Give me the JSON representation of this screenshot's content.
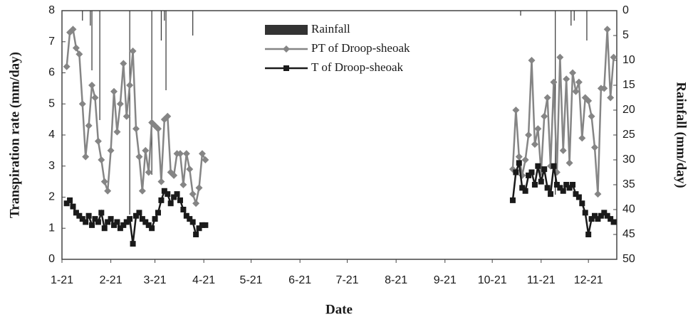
{
  "chart_data": {
    "type": "line",
    "xlabel": "Date",
    "ylabel": "Transpiration rate (mm/day)",
    "y2label": "Rainfall (mm/day)",
    "xlim": [
      1,
      353
    ],
    "xticks": [
      {
        "value": 1,
        "label": "1-21"
      },
      {
        "value": 32,
        "label": "2-21"
      },
      {
        "value": 60,
        "label": "3-21"
      },
      {
        "value": 91,
        "label": "4-21"
      },
      {
        "value": 121,
        "label": "5-21"
      },
      {
        "value": 152,
        "label": "6-21"
      },
      {
        "value": 182,
        "label": "7-21"
      },
      {
        "value": 213,
        "label": "8-21"
      },
      {
        "value": 244,
        "label": "9-21"
      },
      {
        "value": 274,
        "label": "10-21"
      },
      {
        "value": 305,
        "label": "11-21"
      },
      {
        "value": 335,
        "label": "12-21"
      }
    ],
    "ylim": [
      0,
      8
    ],
    "yticks": [
      0,
      1,
      2,
      3,
      4,
      5,
      6,
      7,
      8
    ],
    "y2lim": [
      50,
      0
    ],
    "y2ticks": [
      0,
      5,
      10,
      15,
      20,
      25,
      30,
      35,
      40,
      45,
      50
    ],
    "series": [
      {
        "name": "Rainfall",
        "type": "bar",
        "axis": "y2",
        "color": "#333333",
        "x": [
          14,
          19,
          20,
          25,
          44,
          58,
          64,
          66,
          67,
          84,
          292,
          314,
          324,
          326,
          334
        ],
        "values": [
          2,
          3,
          12,
          22,
          41,
          33,
          6,
          2,
          16,
          5,
          1,
          37,
          3,
          2,
          6
        ]
      },
      {
        "name": "PT of Droop-sheoak",
        "type": "line",
        "marker": "diamond",
        "color": "#858585",
        "x": [
          4,
          6,
          8,
          10,
          12,
          14,
          16,
          18,
          20,
          22,
          24,
          26,
          28,
          30,
          32,
          34,
          36,
          38,
          40,
          42,
          44,
          46,
          48,
          50,
          52,
          54,
          56,
          58,
          60,
          62,
          64,
          66,
          68,
          70,
          72,
          74,
          76,
          78,
          80,
          82,
          84,
          86,
          88,
          90,
          92,
          null,
          287,
          289,
          291,
          293,
          295,
          297,
          299,
          301,
          303,
          305,
          307,
          309,
          311,
          313,
          315,
          317,
          319,
          321,
          323,
          325,
          327,
          329,
          331,
          333,
          335,
          337,
          339,
          341,
          343,
          345,
          347,
          349,
          351
        ],
        "values": [
          6.2,
          7.3,
          7.4,
          6.8,
          6.6,
          5.0,
          3.3,
          4.3,
          5.6,
          5.2,
          3.8,
          3.2,
          2.5,
          2.2,
          3.5,
          5.4,
          4.1,
          5.0,
          6.3,
          4.6,
          5.6,
          6.7,
          4.2,
          3.3,
          2.2,
          3.5,
          2.8,
          4.4,
          4.3,
          4.2,
          2.5,
          4.5,
          4.6,
          2.8,
          2.7,
          3.4,
          3.4,
          2.4,
          3.4,
          2.9,
          2.1,
          1.8,
          2.3,
          3.4,
          3.2,
          null,
          2.9,
          4.8,
          3.3,
          2.7,
          3.2,
          4.0,
          6.4,
          3.7,
          4.2,
          2.8,
          4.6,
          5.2,
          3.0,
          5.7,
          2.8,
          6.5,
          3.5,
          5.8,
          3.1,
          6.0,
          5.4,
          5.7,
          3.9,
          5.2,
          5.1,
          4.6,
          3.6,
          2.1,
          5.5,
          5.5,
          7.4,
          5.2,
          6.5
        ]
      },
      {
        "name": "T of Droop-sheoak",
        "type": "line",
        "marker": "square",
        "color": "#1a1a1a",
        "x": [
          4,
          6,
          8,
          10,
          12,
          14,
          16,
          18,
          20,
          22,
          24,
          26,
          28,
          30,
          32,
          34,
          36,
          38,
          40,
          42,
          44,
          46,
          48,
          50,
          52,
          54,
          56,
          58,
          60,
          62,
          64,
          66,
          68,
          70,
          72,
          74,
          76,
          78,
          80,
          82,
          84,
          86,
          88,
          90,
          92,
          null,
          287,
          289,
          291,
          293,
          295,
          297,
          299,
          301,
          303,
          305,
          307,
          309,
          311,
          313,
          315,
          317,
          319,
          321,
          323,
          325,
          327,
          329,
          331,
          333,
          335,
          337,
          339,
          341,
          343,
          345,
          347,
          349,
          351
        ],
        "values": [
          1.8,
          1.9,
          1.7,
          1.5,
          1.4,
          1.3,
          1.2,
          1.4,
          1.1,
          1.3,
          1.2,
          1.5,
          1.0,
          1.2,
          1.3,
          1.1,
          1.2,
          1.0,
          1.1,
          1.2,
          1.3,
          0.5,
          1.4,
          1.5,
          1.3,
          1.2,
          1.1,
          1.0,
          1.3,
          1.5,
          1.9,
          2.2,
          2.1,
          1.8,
          2.0,
          2.1,
          1.9,
          1.6,
          1.4,
          1.3,
          1.2,
          0.8,
          1.0,
          1.1,
          1.1,
          null,
          1.9,
          2.8,
          3.1,
          2.3,
          2.2,
          2.7,
          2.8,
          2.4,
          3.0,
          2.5,
          2.9,
          2.3,
          2.1,
          3.0,
          2.4,
          2.3,
          2.2,
          2.4,
          2.3,
          2.4,
          2.1,
          2.0,
          1.8,
          1.5,
          0.8,
          1.3,
          1.4,
          1.3,
          1.4,
          1.5,
          1.4,
          1.3,
          1.2
        ]
      }
    ]
  }
}
